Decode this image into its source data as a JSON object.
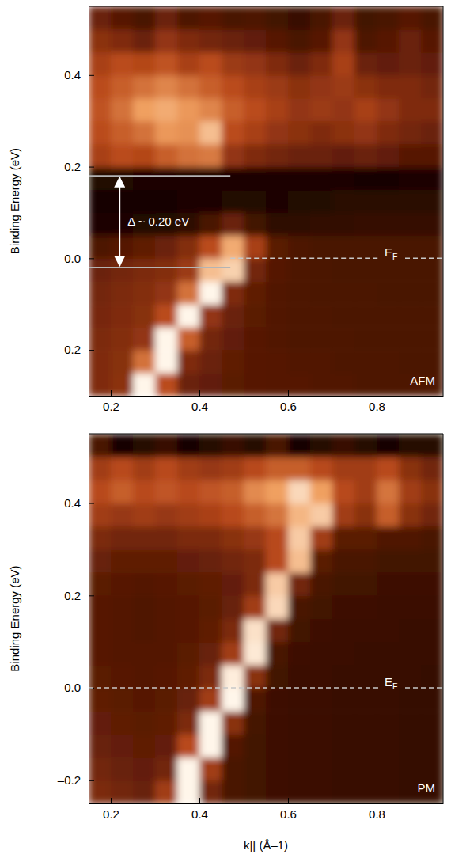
{
  "chart_data": [
    {
      "type": "heatmap",
      "y_label": "Binding Energy (eV)",
      "xlim": [
        0.15,
        0.95
      ],
      "ylim": [
        -0.3,
        0.55
      ],
      "xticks": [
        0.2,
        0.4,
        0.6,
        0.8
      ],
      "yticks": [
        {
          "value": -0.2,
          "label": "–0.2"
        },
        {
          "value": 0,
          "label": "0.0"
        },
        0.2,
        0.4
      ],
      "x": [
        0.175,
        0.225,
        0.275,
        0.325,
        0.375,
        0.425,
        0.475,
        0.525,
        0.575,
        0.625,
        0.675,
        0.725,
        0.775,
        0.825,
        0.875,
        0.925
      ],
      "y": [
        -0.275,
        -0.225,
        -0.175,
        -0.125,
        -0.075,
        -0.025,
        0.025,
        0.075,
        0.125,
        0.175,
        0.225,
        0.275,
        0.325,
        0.375,
        0.425,
        0.475,
        0.525
      ],
      "z": [
        [
          0.35,
          0.38,
          0.95,
          0.5,
          0.3,
          0.28,
          0.26,
          0.25,
          0.24,
          0.24,
          0.23,
          0.23,
          0.22,
          0.22,
          0.22,
          0.22
        ],
        [
          0.35,
          0.37,
          0.6,
          0.95,
          0.35,
          0.3,
          0.27,
          0.25,
          0.24,
          0.23,
          0.23,
          0.22,
          0.22,
          0.22,
          0.21,
          0.21
        ],
        [
          0.34,
          0.36,
          0.4,
          0.95,
          0.55,
          0.32,
          0.28,
          0.25,
          0.23,
          0.22,
          0.22,
          0.22,
          0.21,
          0.21,
          0.21,
          0.21
        ],
        [
          0.33,
          0.35,
          0.37,
          0.5,
          0.95,
          0.4,
          0.3,
          0.26,
          0.23,
          0.22,
          0.22,
          0.21,
          0.21,
          0.21,
          0.21,
          0.21
        ],
        [
          0.32,
          0.34,
          0.36,
          0.4,
          0.6,
          0.95,
          0.35,
          0.27,
          0.23,
          0.22,
          0.21,
          0.21,
          0.21,
          0.2,
          0.2,
          0.2
        ],
        [
          0.3,
          0.32,
          0.34,
          0.36,
          0.42,
          0.8,
          0.85,
          0.32,
          0.24,
          0.22,
          0.21,
          0.2,
          0.2,
          0.2,
          0.2,
          0.2
        ],
        [
          0.22,
          0.24,
          0.27,
          0.3,
          0.36,
          0.5,
          0.75,
          0.45,
          0.26,
          0.22,
          0.2,
          0.2,
          0.2,
          0.2,
          0.2,
          0.2
        ],
        [
          0.06,
          0.06,
          0.07,
          0.08,
          0.12,
          0.2,
          0.3,
          0.18,
          0.12,
          0.12,
          0.13,
          0.13,
          0.14,
          0.14,
          0.14,
          0.14
        ],
        [
          0.03,
          0.03,
          0.03,
          0.04,
          0.05,
          0.06,
          0.08,
          0.07,
          0.06,
          0.07,
          0.08,
          0.1,
          0.1,
          0.1,
          0.1,
          0.1
        ],
        [
          0.08,
          0.07,
          0.06,
          0.06,
          0.06,
          0.06,
          0.06,
          0.06,
          0.05,
          0.05,
          0.05,
          0.05,
          0.04,
          0.04,
          0.05,
          0.05
        ],
        [
          0.45,
          0.5,
          0.48,
          0.55,
          0.6,
          0.62,
          0.4,
          0.35,
          0.32,
          0.3,
          0.3,
          0.28,
          0.3,
          0.28,
          0.25,
          0.25
        ],
        [
          0.5,
          0.55,
          0.6,
          0.7,
          0.68,
          0.8,
          0.5,
          0.45,
          0.4,
          0.38,
          0.35,
          0.38,
          0.4,
          0.35,
          0.32,
          0.3
        ],
        [
          0.52,
          0.6,
          0.72,
          0.75,
          0.7,
          0.65,
          0.55,
          0.5,
          0.45,
          0.4,
          0.42,
          0.4,
          0.45,
          0.4,
          0.35,
          0.35
        ],
        [
          0.5,
          0.55,
          0.6,
          0.65,
          0.6,
          0.55,
          0.5,
          0.45,
          0.42,
          0.38,
          0.4,
          0.42,
          0.38,
          0.35,
          0.35,
          0.32
        ],
        [
          0.45,
          0.5,
          0.48,
          0.52,
          0.45,
          0.5,
          0.42,
          0.4,
          0.35,
          0.3,
          0.35,
          0.45,
          0.3,
          0.28,
          0.3,
          0.28
        ],
        [
          0.38,
          0.35,
          0.3,
          0.4,
          0.35,
          0.32,
          0.3,
          0.28,
          0.25,
          0.2,
          0.25,
          0.4,
          0.22,
          0.25,
          0.3,
          0.25
        ],
        [
          0.3,
          0.25,
          0.2,
          0.3,
          0.22,
          0.25,
          0.2,
          0.22,
          0.18,
          0.15,
          0.2,
          0.3,
          0.18,
          0.2,
          0.25,
          0.2
        ]
      ],
      "annotations": [
        {
          "text": "Δ ~ 0.20 eV",
          "x": 0.22,
          "x_to": 0.47,
          "y_from": -0.02,
          "y_to": 0.18
        },
        {
          "text": "EF",
          "y": 0,
          "x_from": 0.47
        },
        {
          "text": "AFM"
        }
      ]
    },
    {
      "type": "heatmap",
      "y_label": "Binding Energy (eV)",
      "x_label": "k|| (Å–1)",
      "xlim": [
        0.15,
        0.95
      ],
      "ylim": [
        -0.25,
        0.55
      ],
      "xticks": [
        0.2,
        0.4,
        0.6,
        0.8
      ],
      "yticks": [
        {
          "value": -0.2,
          "label": "–0.2"
        },
        {
          "value": 0,
          "label": "0.0"
        },
        0.2,
        0.4
      ],
      "x": [
        0.175,
        0.225,
        0.275,
        0.325,
        0.375,
        0.425,
        0.475,
        0.525,
        0.575,
        0.625,
        0.675,
        0.725,
        0.775,
        0.825,
        0.875,
        0.925
      ],
      "y": [
        -0.225,
        -0.175,
        -0.125,
        -0.075,
        -0.025,
        0.025,
        0.075,
        0.125,
        0.175,
        0.225,
        0.275,
        0.325,
        0.375,
        0.425,
        0.475,
        0.525
      ],
      "z": [
        [
          0.42,
          0.4,
          0.38,
          0.5,
          0.95,
          0.4,
          0.3,
          0.28,
          0.27,
          0.26,
          0.26,
          0.25,
          0.25,
          0.25,
          0.24,
          0.24
        ],
        [
          0.4,
          0.38,
          0.37,
          0.4,
          0.95,
          0.5,
          0.3,
          0.28,
          0.27,
          0.26,
          0.26,
          0.25,
          0.25,
          0.25,
          0.24,
          0.24
        ],
        [
          0.38,
          0.37,
          0.36,
          0.37,
          0.55,
          0.95,
          0.33,
          0.28,
          0.27,
          0.26,
          0.26,
          0.25,
          0.25,
          0.25,
          0.24,
          0.24
        ],
        [
          0.37,
          0.36,
          0.35,
          0.36,
          0.42,
          0.95,
          0.45,
          0.29,
          0.27,
          0.26,
          0.26,
          0.25,
          0.25,
          0.25,
          0.24,
          0.24
        ],
        [
          0.36,
          0.35,
          0.34,
          0.35,
          0.38,
          0.5,
          0.95,
          0.32,
          0.27,
          0.26,
          0.26,
          0.25,
          0.25,
          0.25,
          0.24,
          0.24
        ],
        [
          0.35,
          0.34,
          0.33,
          0.34,
          0.36,
          0.42,
          0.93,
          0.45,
          0.28,
          0.26,
          0.26,
          0.25,
          0.25,
          0.25,
          0.25,
          0.24
        ],
        [
          0.34,
          0.33,
          0.33,
          0.33,
          0.35,
          0.38,
          0.5,
          0.92,
          0.3,
          0.27,
          0.26,
          0.26,
          0.25,
          0.25,
          0.25,
          0.25
        ],
        [
          0.34,
          0.33,
          0.32,
          0.33,
          0.34,
          0.36,
          0.42,
          0.9,
          0.4,
          0.28,
          0.27,
          0.26,
          0.26,
          0.26,
          0.25,
          0.25
        ],
        [
          0.34,
          0.33,
          0.32,
          0.33,
          0.34,
          0.35,
          0.38,
          0.5,
          0.88,
          0.3,
          0.28,
          0.27,
          0.27,
          0.26,
          0.26,
          0.26
        ],
        [
          0.35,
          0.34,
          0.33,
          0.34,
          0.35,
          0.36,
          0.37,
          0.42,
          0.85,
          0.4,
          0.3,
          0.28,
          0.28,
          0.27,
          0.27,
          0.27
        ],
        [
          0.38,
          0.36,
          0.36,
          0.36,
          0.37,
          0.38,
          0.4,
          0.42,
          0.55,
          0.82,
          0.35,
          0.3,
          0.3,
          0.28,
          0.28,
          0.28
        ],
        [
          0.42,
          0.4,
          0.4,
          0.4,
          0.42,
          0.42,
          0.45,
          0.48,
          0.55,
          0.85,
          0.5,
          0.35,
          0.35,
          0.32,
          0.32,
          0.3
        ],
        [
          0.5,
          0.48,
          0.5,
          0.48,
          0.5,
          0.52,
          0.55,
          0.6,
          0.65,
          0.8,
          0.85,
          0.5,
          0.45,
          0.6,
          0.45,
          0.4
        ],
        [
          0.55,
          0.6,
          0.55,
          0.58,
          0.55,
          0.58,
          0.6,
          0.7,
          0.75,
          0.88,
          0.75,
          0.55,
          0.5,
          0.65,
          0.5,
          0.45
        ],
        [
          0.5,
          0.55,
          0.5,
          0.55,
          0.5,
          0.48,
          0.5,
          0.55,
          0.6,
          0.6,
          0.55,
          0.5,
          0.5,
          0.55,
          0.45,
          0.4
        ],
        [
          0.3,
          0.15,
          0.2,
          0.25,
          0.15,
          0.2,
          0.25,
          0.2,
          0.3,
          0.15,
          0.2,
          0.25,
          0.2,
          0.15,
          0.2,
          0.2
        ]
      ],
      "annotations": [
        {
          "text": "EF",
          "y": 0,
          "x_from": 0.15
        },
        {
          "text": "PM"
        }
      ]
    }
  ]
}
